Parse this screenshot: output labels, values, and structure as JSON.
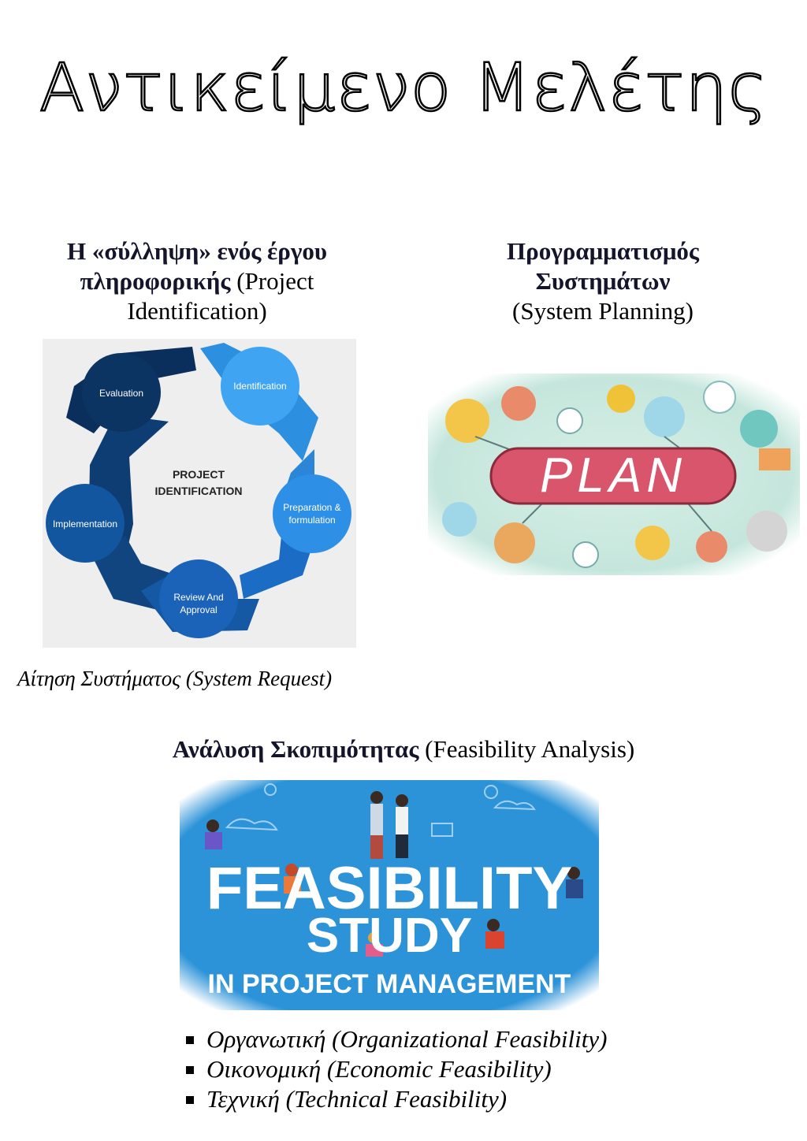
{
  "page": {
    "title": "Αντικείμενο Μελέτης"
  },
  "section_identification": {
    "heading_bold": "Η «σύλληψη» ενός έργου πληροφορικής",
    "heading_rest": " (Project Identification)",
    "diagram": {
      "center": [
        "PROJECT",
        "IDENTIFICATION"
      ],
      "stages": {
        "identification": "Identification",
        "preparation": [
          "Preparation &",
          "formulation"
        ],
        "review": [
          "Review And",
          "Approval"
        ],
        "implementation": "Implementation",
        "evaluation": "Evaluation"
      }
    },
    "caption": "Αίτηση Συστήματος (System Request)"
  },
  "section_planning": {
    "heading_bold": "Προγραμματισμός Συστημάτων",
    "heading_rest": "(System Planning)",
    "image_word": "PLAN"
  },
  "section_feasibility": {
    "heading_bold": "Ανάλυση Σκοπιμότητας",
    "heading_rest": " (Feasibility Analysis)",
    "banner": {
      "line1": "FEASIBILITY",
      "line2": "STUDY",
      "line3": "IN PROJECT MANAGEMENT"
    },
    "types": [
      "Οργανωτική (Organizational Feasibility)",
      "Οικονομική (Economic Feasibility)",
      "Τεχνική (Technical Feasibility)"
    ]
  },
  "colors": {
    "navy": "#0b2f5c",
    "blue": "#1e6fc3",
    "light_blue": "#3fa4f2",
    "plan_pink": "#d9556b",
    "banner_blue": "#2c93d8"
  }
}
